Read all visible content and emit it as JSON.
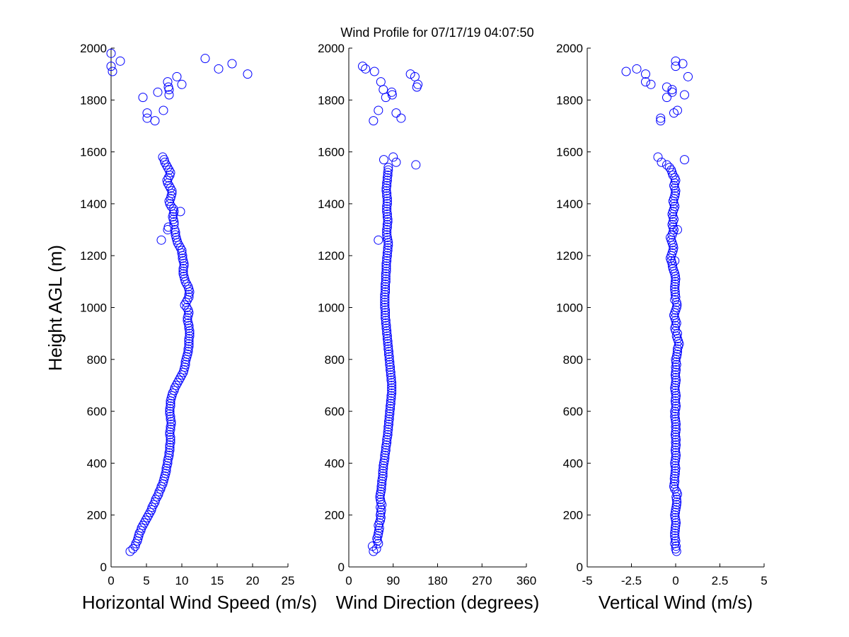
{
  "chart_data": {
    "type": "scatter",
    "title": "Wind Profile for  07/17/19 04:07:50",
    "ylabel": "Height AGL (m)",
    "marker_color": "#0000ff",
    "heights": [
      60,
      70,
      80,
      90,
      100,
      110,
      120,
      130,
      140,
      150,
      160,
      170,
      180,
      190,
      200,
      210,
      220,
      230,
      240,
      250,
      260,
      270,
      280,
      290,
      300,
      310,
      320,
      330,
      340,
      350,
      360,
      370,
      380,
      390,
      400,
      410,
      420,
      430,
      440,
      450,
      460,
      470,
      480,
      490,
      500,
      510,
      520,
      530,
      540,
      550,
      560,
      570,
      580,
      590,
      600,
      610,
      620,
      630,
      640,
      650,
      660,
      670,
      680,
      690,
      700,
      710,
      720,
      730,
      740,
      750,
      760,
      770,
      780,
      790,
      800,
      810,
      820,
      830,
      840,
      850,
      860,
      870,
      880,
      890,
      900,
      910,
      920,
      930,
      940,
      950,
      960,
      970,
      980,
      990,
      1000,
      1010,
      1020,
      1030,
      1040,
      1050,
      1060,
      1070,
      1080,
      1090,
      1100,
      1110,
      1120,
      1130,
      1140,
      1150,
      1160,
      1170,
      1180,
      1190,
      1200,
      1210,
      1220,
      1230,
      1240,
      1250,
      1260,
      1270,
      1280,
      1290,
      1300,
      1310,
      1320,
      1330,
      1340,
      1350,
      1360,
      1370,
      1380,
      1390,
      1400,
      1410,
      1420,
      1430,
      1440,
      1450,
      1460,
      1470,
      1480,
      1490,
      1500,
      1510,
      1520,
      1530,
      1540,
      1550,
      1560,
      1570,
      1580,
      1720,
      1730,
      1750,
      1760,
      1810,
      1820,
      1830,
      1840,
      1850,
      1860,
      1870,
      1890,
      1900,
      1910,
      1920,
      1930,
      1940,
      1950,
      1960,
      1980
    ],
    "panels": [
      {
        "xlabel": "Horizontal Wind Speed (m/s)",
        "xlim": [
          0,
          25
        ],
        "xticks": [
          0,
          5,
          10,
          15,
          20,
          25
        ],
        "xtick_labels": [
          "0",
          "5",
          "10",
          "15",
          "20",
          "25"
        ],
        "ylim": [
          0,
          2000
        ],
        "yticks": [
          0,
          200,
          400,
          600,
          800,
          1000,
          1200,
          1400,
          1600,
          1800,
          2000
        ],
        "ytick_labels": [
          "0",
          "200",
          "400",
          "600",
          "800",
          "1000",
          "1200",
          "1400",
          "1600",
          "1800",
          "2000"
        ],
        "values": [
          2.7,
          3.1,
          3.4,
          3.5,
          3.7,
          3.8,
          3.9,
          4.0,
          4.2,
          4.3,
          4.5,
          4.7,
          4.9,
          5.1,
          5.3,
          5.5,
          5.7,
          5.8,
          6.0,
          6.2,
          6.3,
          6.5,
          6.7,
          6.8,
          7.0,
          7.1,
          7.3,
          7.4,
          7.5,
          7.6,
          7.7,
          7.8,
          7.8,
          7.9,
          8.0,
          8.0,
          8.1,
          8.2,
          8.2,
          8.3,
          8.3,
          8.3,
          8.4,
          8.4,
          8.4,
          8.3,
          8.3,
          8.4,
          8.4,
          8.5,
          8.5,
          8.4,
          8.4,
          8.3,
          8.3,
          8.3,
          8.4,
          8.4,
          8.4,
          8.5,
          8.6,
          8.7,
          8.9,
          9.0,
          9.2,
          9.4,
          9.6,
          9.8,
          10.0,
          10.2,
          10.3,
          10.4,
          10.5,
          10.5,
          10.6,
          10.7,
          10.8,
          10.9,
          10.9,
          11.0,
          11.0,
          11.0,
          11.0,
          11.1,
          11.1,
          11.1,
          11.0,
          11.0,
          10.9,
          10.8,
          10.8,
          10.9,
          11.0,
          10.9,
          10.7,
          10.4,
          10.6,
          10.8,
          11.0,
          11.0,
          11.1,
          11.0,
          10.9,
          10.7,
          10.5,
          10.4,
          10.3,
          10.2,
          10.2,
          10.2,
          10.3,
          10.3,
          10.2,
          10.1,
          10.1,
          10.0,
          10.0,
          9.8,
          9.6,
          9.4,
          9.3,
          9.2,
          9.1,
          9.1,
          9.0,
          8.1,
          8.9,
          8.9,
          8.8,
          8.7,
          8.8,
          8.9,
          8.8,
          8.5,
          8.3,
          8.2,
          8.4,
          8.5,
          8.6,
          8.6,
          8.4,
          8.2,
          8.0,
          7.9,
          8.1,
          8.3,
          8.4,
          8.2,
          8.0,
          7.8,
          7.6,
          7.5,
          7.3,
          6.2,
          5.1,
          5.1,
          7.4,
          4.5,
          8.2,
          6.6,
          8.2,
          8.1,
          10.0,
          8.0,
          9.3,
          19.3,
          0.2,
          15.2,
          0.0,
          17.1,
          1.3,
          13.3,
          0.0
        ],
        "extra_points": [
          [
            7.1,
            1260
          ],
          [
            9.8,
            1370
          ],
          [
            8.0,
            1300
          ]
        ]
      },
      {
        "xlabel": "Wind Direction (degrees)",
        "xlim": [
          0,
          360
        ],
        "xticks": [
          0,
          90,
          180,
          270,
          360
        ],
        "xtick_labels": [
          "0",
          "90",
          "180",
          "270",
          "360"
        ],
        "ylim": [
          0,
          2000
        ],
        "yticks": [
          0,
          200,
          400,
          600,
          800,
          1000,
          1200,
          1400,
          1600,
          1800,
          2000
        ],
        "ytick_labels": [
          "0",
          "200",
          "400",
          "600",
          "800",
          "1000",
          "1200",
          "1400",
          "1600",
          "1800",
          "2000"
        ],
        "values": [
          50,
          56,
          48,
          60,
          58,
          57,
          59,
          60,
          61,
          62,
          60,
          62,
          64,
          65,
          64,
          65,
          66,
          64,
          67,
          65,
          64,
          63,
          64,
          65,
          66,
          66,
          67,
          67,
          68,
          69,
          69,
          69,
          70,
          70,
          71,
          72,
          73,
          73,
          74,
          75,
          75,
          76,
          77,
          77,
          78,
          79,
          79,
          80,
          80,
          81,
          81,
          82,
          82,
          83,
          83,
          84,
          84,
          85,
          85,
          86,
          86,
          87,
          87,
          87,
          87,
          87,
          86,
          86,
          85,
          85,
          84,
          84,
          83,
          83,
          82,
          82,
          81,
          81,
          80,
          80,
          79,
          79,
          78,
          78,
          77,
          77,
          76,
          76,
          75,
          75,
          74,
          74,
          74,
          74,
          73,
          73,
          73,
          73,
          73,
          73,
          74,
          74,
          74,
          74,
          75,
          75,
          75,
          75,
          76,
          76,
          76,
          76,
          77,
          77,
          78,
          78,
          79,
          79,
          80,
          80,
          79,
          78,
          77,
          77,
          77,
          78,
          78,
          79,
          79,
          78,
          78,
          77,
          77,
          77,
          78,
          78,
          78,
          77,
          77,
          76,
          76,
          77,
          77,
          78,
          78,
          79,
          79,
          80,
          80,
          136,
          96,
          71,
          90,
          50,
          106,
          96,
          60,
          75,
          88,
          87,
          70,
          138,
          140,
          65,
          134,
          125,
          52,
          34,
          28
        ],
        "extra_points": [
          [
            60,
            1260
          ]
        ]
      },
      {
        "xlabel": "Vertical Wind (m/s)",
        "xlim": [
          -5,
          5
        ],
        "xticks": [
          -5,
          -2.5,
          0,
          2.5,
          5
        ],
        "xtick_labels": [
          "-5",
          "-2.5",
          "0",
          "2.5",
          "5"
        ],
        "ylim": [
          0,
          2000
        ],
        "yticks": [
          0,
          200,
          400,
          600,
          800,
          1000,
          1200,
          1400,
          1600,
          1800,
          2000
        ],
        "ytick_labels": [
          "0",
          "200",
          "400",
          "600",
          "800",
          "1000",
          "1200",
          "1400",
          "1600",
          "1800",
          "2000"
        ],
        "values": [
          0.05,
          0.0,
          0.02,
          -0.05,
          0.0,
          -0.03,
          -0.05,
          -0.05,
          -0.03,
          -0.02,
          0.0,
          0.02,
          0.0,
          -0.03,
          -0.05,
          -0.02,
          0.0,
          0.03,
          0.05,
          0.07,
          0.05,
          0.03,
          0.1,
          0.05,
          -0.05,
          -0.1,
          -0.08,
          -0.05,
          -0.07,
          -0.05,
          -0.03,
          -0.02,
          0.0,
          -0.03,
          -0.05,
          -0.02,
          0.0,
          0.02,
          0.0,
          -0.02,
          0.0,
          0.02,
          0.0,
          0.02,
          0.0,
          -0.02,
          0.0,
          0.02,
          0.0,
          0.02,
          0.0,
          -0.02,
          -0.05,
          -0.03,
          -0.05,
          0.0,
          0.02,
          0.0,
          -0.02,
          0.0,
          0.02,
          0.0,
          -0.03,
          -0.05,
          -0.02,
          0.0,
          0.02,
          0.0,
          -0.02,
          0.0,
          0.02,
          0.0,
          0.05,
          0.02,
          0.0,
          0.05,
          0.08,
          0.1,
          0.1,
          0.15,
          0.2,
          0.15,
          0.1,
          0.05,
          0.1,
          0.0,
          -0.05,
          0.0,
          0.05,
          0.0,
          -0.05,
          -0.1,
          -0.05,
          0.0,
          0.05,
          0.08,
          0.05,
          -0.05,
          0.0,
          -0.02,
          -0.03,
          -0.05,
          -0.05,
          -0.03,
          -0.02,
          0.0,
          -0.02,
          -0.05,
          -0.1,
          -0.15,
          -0.18,
          -0.2,
          -0.25,
          -0.3,
          -0.25,
          -0.2,
          -0.15,
          -0.12,
          -0.15,
          -0.2,
          -0.25,
          -0.3,
          -0.2,
          -0.15,
          -0.1,
          -0.15,
          -0.2,
          -0.15,
          -0.1,
          -0.15,
          -0.2,
          -0.15,
          -0.1,
          -0.05,
          -0.1,
          -0.15,
          -0.1,
          -0.05,
          -0.02,
          0.0,
          -0.05,
          -0.1,
          -0.05,
          0.0,
          -0.05,
          -0.15,
          -0.2,
          -0.25,
          -0.35,
          -0.5,
          -0.8,
          0.5,
          -1.0,
          -0.85,
          -0.85,
          -0.1,
          0.1,
          -0.5,
          0.5,
          -0.2,
          -0.2,
          -0.5,
          -1.4,
          -1.7,
          0.7,
          -1.7,
          -2.8,
          -2.2,
          0.0,
          0.4,
          0.0
        ],
        "extra_points": [
          [
            0.1,
            1300
          ],
          [
            -0.05,
            1180
          ]
        ]
      }
    ]
  }
}
